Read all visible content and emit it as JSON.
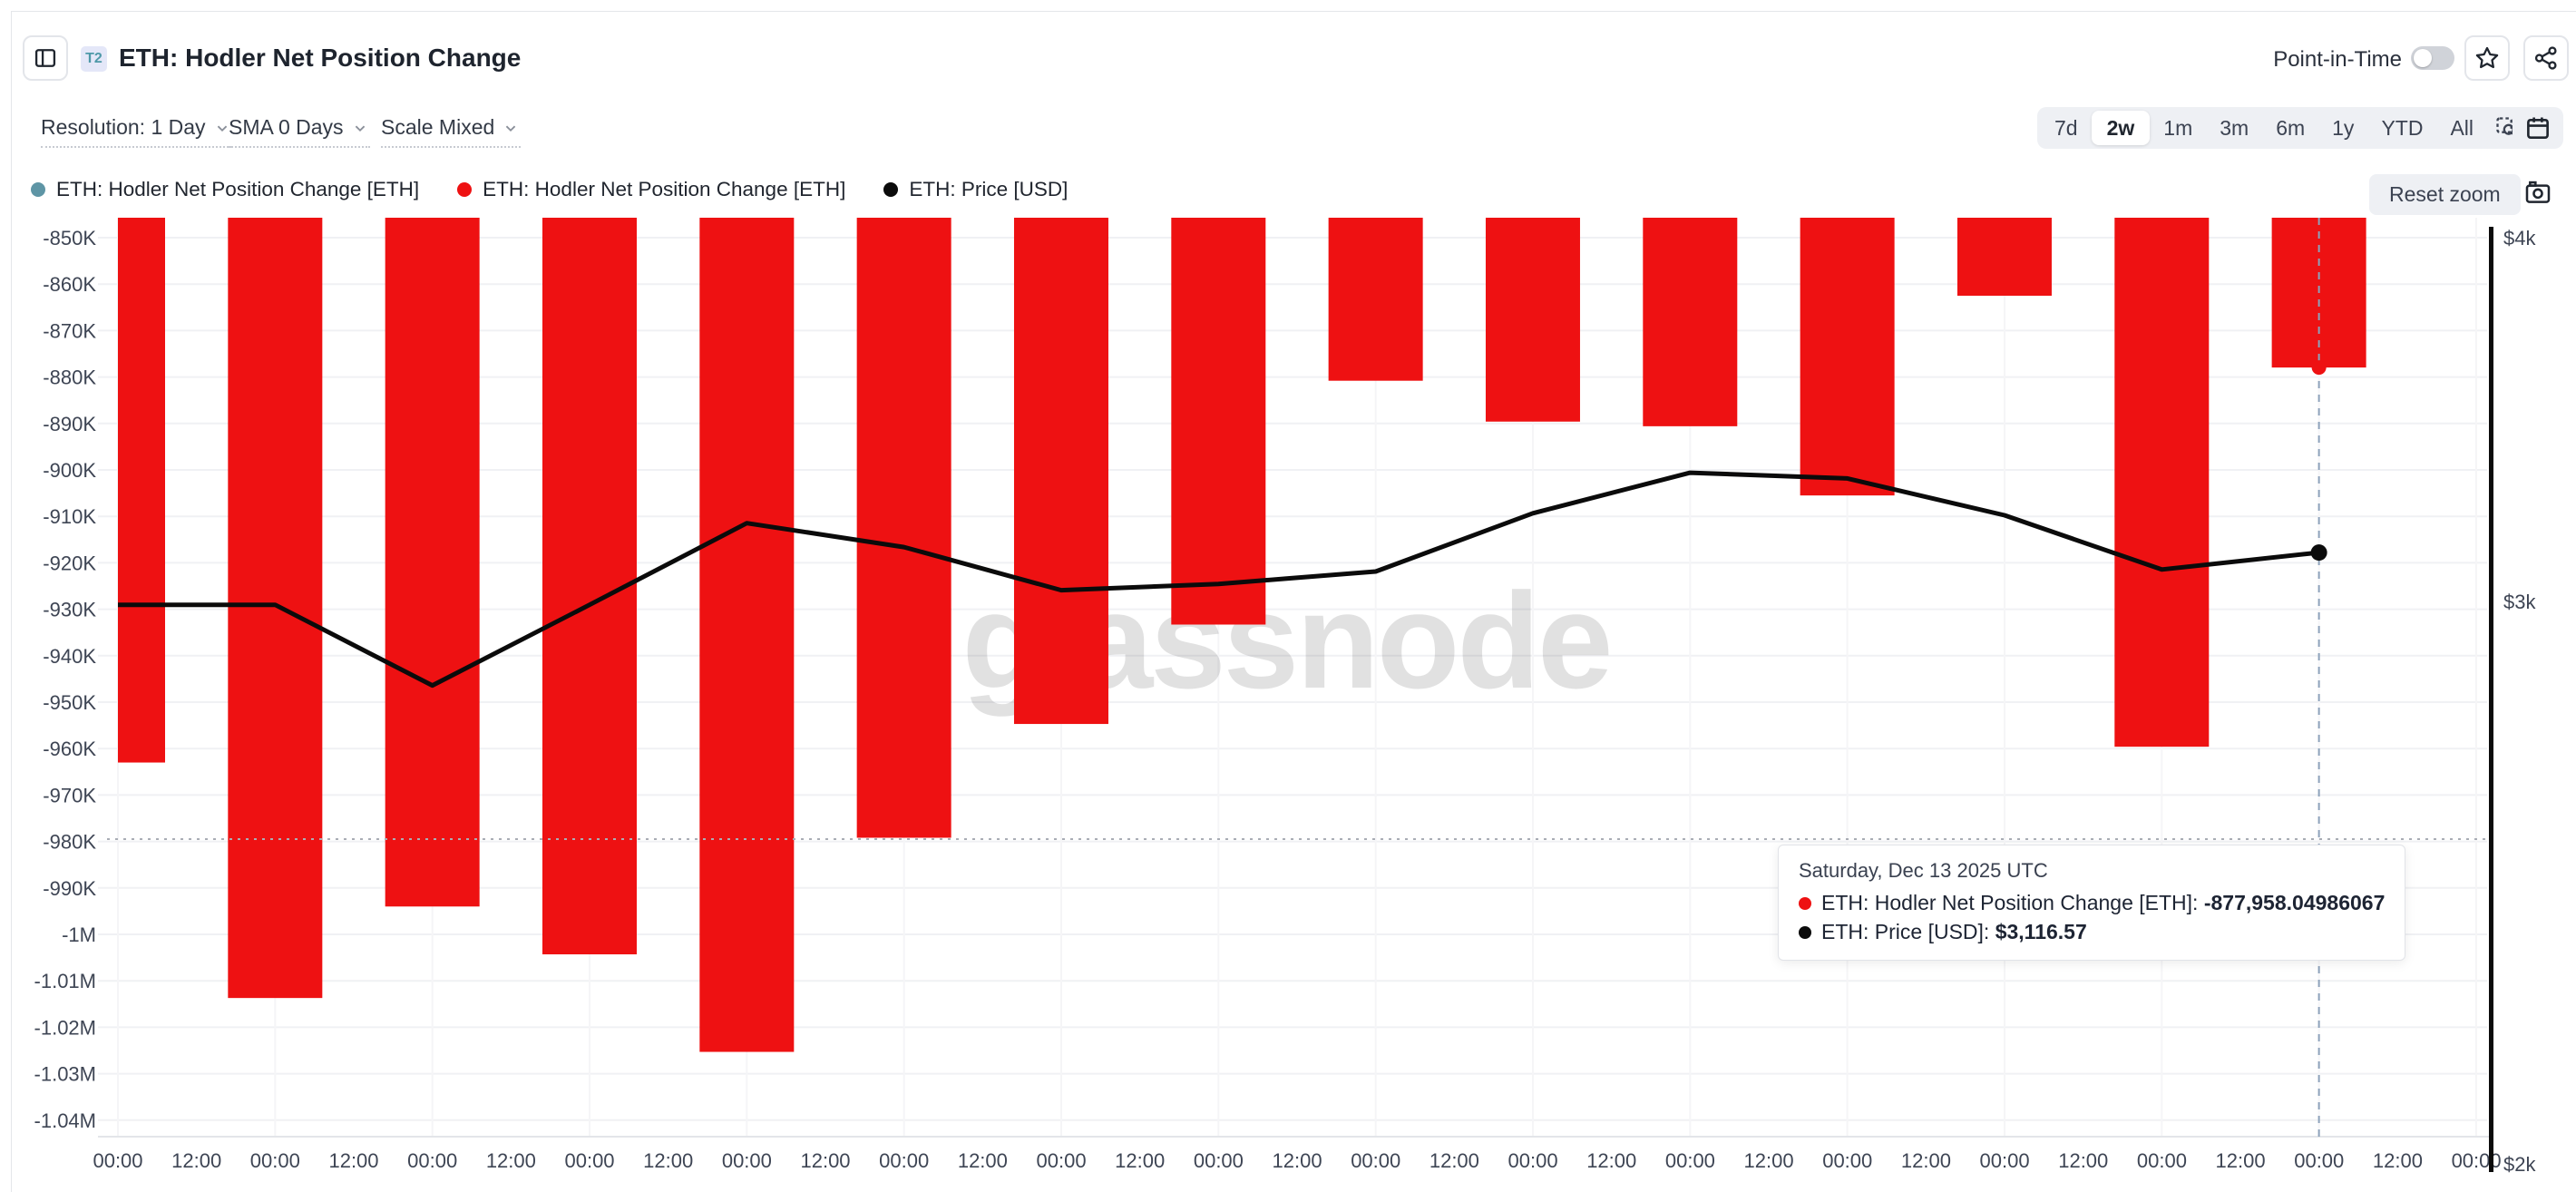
{
  "header": {
    "badge": "T2",
    "title": "ETH: Hodler Net Position Change",
    "point_in_time_label": "Point-in-Time",
    "point_in_time_on": false
  },
  "toolbar": {
    "dropdowns": [
      {
        "label": "Resolution: 1 Day"
      },
      {
        "label": "SMA 0 Days"
      },
      {
        "label": "Scale Mixed"
      }
    ],
    "ranges": [
      "7d",
      "2w",
      "1m",
      "3m",
      "6m",
      "1y",
      "YTD",
      "All"
    ],
    "active_range": "2w"
  },
  "legend": [
    {
      "label": "ETH: Hodler Net Position Change [ETH]",
      "color": "#5e95a5"
    },
    {
      "label": "ETH: Hodler Net Position Change [ETH]",
      "color": "#ee1112"
    },
    {
      "label": "ETH: Price [USD]",
      "color": "#0b0b0b"
    }
  ],
  "reset_zoom_label": "Reset zoom",
  "watermark": "glassnode",
  "tooltip": {
    "date": "Saturday, Dec 13 2025 UTC",
    "rows": [
      {
        "color": "#ee1112",
        "label": "ETH: Hodler Net Position Change [ETH]:",
        "value": "-877,958.04986067"
      },
      {
        "color": "#0b0b0b",
        "label": "ETH: Price [USD]:",
        "value": "$3,116.57"
      }
    ]
  },
  "chart_data": {
    "type": "mixed",
    "title": "ETH: Hodler Net Position Change",
    "grid": true,
    "series": [
      {
        "name": "ETH: Hodler Net Position Change [ETH]",
        "type": "bar",
        "color": "#ee1112",
        "axis": "left",
        "values": [
          -963000,
          -1013700,
          -994000,
          -1004300,
          -1025300,
          -979200,
          -954700,
          -933300,
          -880800,
          -889600,
          -890600,
          -905500,
          -862500,
          -959600,
          -877958.04986067
        ]
      },
      {
        "name": "ETH: Price [USD]",
        "type": "line",
        "color": "#0b0b0b",
        "axis": "right",
        "values": [
          2990,
          2990,
          2805,
          2990,
          3190,
          3130,
          3025,
          3040,
          3070,
          3215,
          3320,
          3305,
          3210,
          3075,
          3116.57
        ]
      }
    ],
    "x_tick_labels": [
      "00:00",
      "12:00",
      "00:00",
      "12:00",
      "00:00",
      "12:00",
      "00:00",
      "12:00",
      "00:00",
      "12:00",
      "00:00",
      "12:00",
      "00:00",
      "12:00",
      "00:00",
      "12:00",
      "00:00",
      "12:00",
      "00:00",
      "12:00",
      "00:00",
      "12:00",
      "00:00",
      "12:00",
      "00:00",
      "12:00",
      "00:00",
      "12:00",
      "00:00",
      "12:00",
      "00:00"
    ],
    "left_axis": {
      "tick_labels": [
        "-850K",
        "-860K",
        "-870K",
        "-880K",
        "-890K",
        "-900K",
        "-910K",
        "-920K",
        "-930K",
        "-940K",
        "-950K",
        "-960K",
        "-970K",
        "-980K",
        "-990K",
        "-1M",
        "-1.01M",
        "-1.02M",
        "-1.03M",
        "-1.04M"
      ],
      "top_value": -850000,
      "tick_step": -10000
    },
    "right_axis": {
      "tick_labels": [
        "$4k",
        "$3k",
        "$2k"
      ],
      "scale": "log",
      "top_value": 4000
    },
    "highlight_index": 14,
    "crosshair": {
      "x_index": 14,
      "y_left_axis_value": -979500
    }
  }
}
